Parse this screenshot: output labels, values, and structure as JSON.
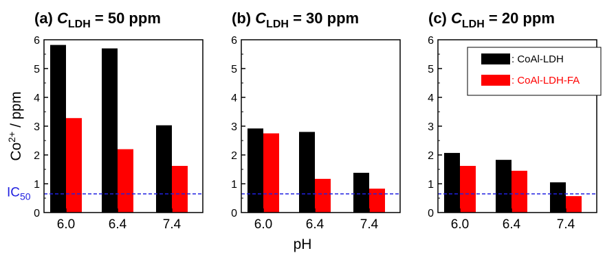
{
  "chart_data": {
    "type": "bar",
    "ylabel": "Co",
    "ylabel_sup": "2+",
    "ylabel_suffix": " / ppm",
    "xlabel": "pH",
    "ylim": [
      0,
      6
    ],
    "yticks": [
      "0",
      "1",
      "2",
      "3",
      "4",
      "5",
      "6"
    ],
    "categories": [
      "6.0",
      "6.4",
      "7.4"
    ],
    "reference_line": {
      "label": "IC",
      "label_sub": "50",
      "value": 0.65,
      "color": "#2020e0",
      "style": "dashed"
    },
    "legend": {
      "placement": "top-right of panel (c)",
      "entries": [
        {
          "label": ": CoAl-LDH",
          "color": "#000000",
          "text_color": "#000000"
        },
        {
          "label": ": CoAl-LDH-FA",
          "color": "#ff0000",
          "text_color": "#ff0000"
        }
      ]
    },
    "panels": [
      {
        "title_prefix": "(a) ",
        "title_var": "C",
        "title_sub": "LDH",
        "title_suffix": " = 50 ppm",
        "series": [
          {
            "name": "CoAl-LDH",
            "color": "#000000",
            "values": [
              5.82,
              5.7,
              3.03
            ]
          },
          {
            "name": "CoAl-LDH-FA",
            "color": "#ff0000",
            "values": [
              3.28,
              2.2,
              1.62
            ]
          }
        ]
      },
      {
        "title_prefix": "(b) ",
        "title_var": "C",
        "title_sub": "LDH",
        "title_suffix": " = 30 ppm",
        "series": [
          {
            "name": "CoAl-LDH",
            "color": "#000000",
            "values": [
              2.92,
              2.8,
              1.38
            ]
          },
          {
            "name": "CoAl-LDH-FA",
            "color": "#ff0000",
            "values": [
              2.75,
              1.17,
              0.83
            ]
          }
        ]
      },
      {
        "title_prefix": "(c) ",
        "title_var": "C",
        "title_sub": "LDH",
        "title_suffix": " = 20 ppm",
        "series": [
          {
            "name": "CoAl-LDH",
            "color": "#000000",
            "values": [
              2.07,
              1.83,
              1.05
            ]
          },
          {
            "name": "CoAl-LDH-FA",
            "color": "#ff0000",
            "values": [
              1.62,
              1.45,
              0.57
            ]
          }
        ]
      }
    ]
  }
}
